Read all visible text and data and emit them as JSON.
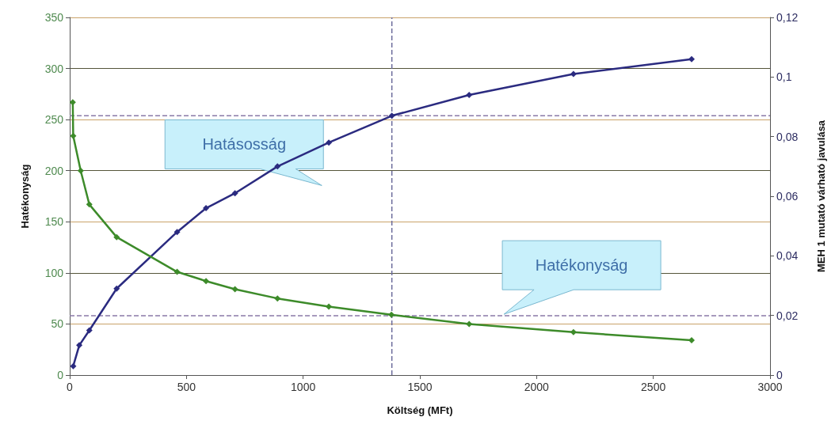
{
  "chart_data": {
    "type": "line",
    "xlabel": "Költség (MFt)",
    "ylabel": "Hatékonyság",
    "y2label": "MEH 1 mutató várható javulása",
    "xlim": [
      0,
      3000
    ],
    "xticks": [
      0,
      500,
      1000,
      1500,
      2000,
      2500,
      3000
    ],
    "ylim": [
      0,
      350
    ],
    "yticks": [
      0,
      50,
      100,
      150,
      200,
      250,
      300,
      350
    ],
    "y2lim": [
      0,
      0.12
    ],
    "y2ticks": [
      0,
      {
        "value": 0.02,
        "label": "0,02"
      },
      {
        "value": 0.04,
        "label": "0,04"
      },
      {
        "value": 0.06,
        "label": "0,06"
      },
      {
        "value": 0.08,
        "label": "0,08"
      },
      {
        "value": 0.1,
        "label": "0,1"
      },
      {
        "value": 0.12,
        "label": "0,12"
      }
    ],
    "grid": "y",
    "marker": "diamond",
    "line_style": "solid",
    "series": [
      {
        "color": "#2b2b80",
        "axis": "y2",
        "x": [
          15,
          41,
          84,
          201,
          460,
          584,
          708,
          890,
          1110,
          1380,
          1711,
          2158,
          2664
        ],
        "values": [
          0.003,
          0.01,
          0.015,
          0.029,
          0.048,
          0.056,
          0.061,
          0.07,
          0.078,
          0.087,
          0.094,
          0.101,
          0.106
        ]
      },
      {
        "color": "#3d8b2a",
        "x": [
          13,
          15,
          47,
          84,
          201,
          460,
          584,
          708,
          890,
          1110,
          1378,
          1711,
          2158,
          2664
        ],
        "values": [
          267,
          234,
          200,
          167,
          135,
          101,
          92,
          84,
          75,
          67,
          59,
          50,
          42,
          34
        ]
      }
    ],
    "ref_lines": [
      {
        "axis": "x",
        "value": 1380,
        "color": "#6a6a9a",
        "line_style": "dashed"
      },
      {
        "axis": "y",
        "value": 58,
        "color": "#8a7aa8",
        "line_style": "dashed"
      },
      {
        "axis": "y2",
        "value": 0.087,
        "color": "#8a7aa8",
        "line_style": "dashed"
      }
    ],
    "annotations": [
      "Hatásosság",
      "Hatékonyság"
    ]
  }
}
